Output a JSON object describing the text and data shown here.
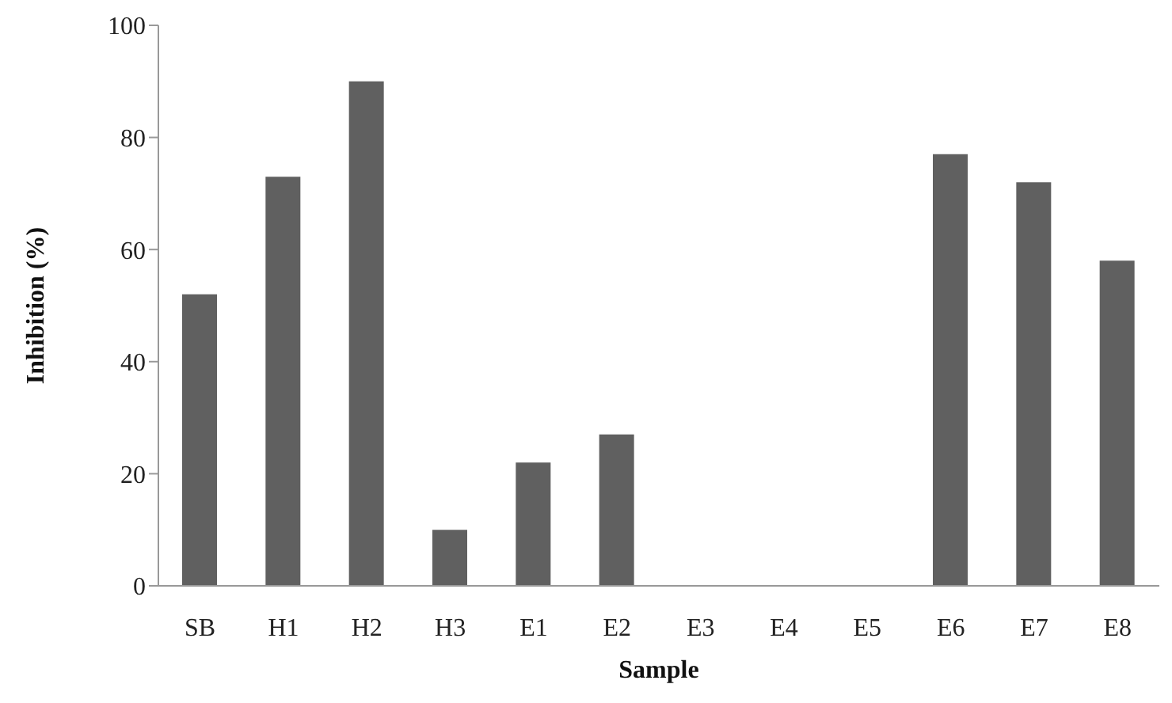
{
  "chart_data": {
    "type": "bar",
    "xlabel": "Sample",
    "ylabel": "Inhibition (%)",
    "categories": [
      "SB",
      "H1",
      "H2",
      "H3",
      "E1",
      "E2",
      "E3",
      "E4",
      "E5",
      "E6",
      "E7",
      "E8"
    ],
    "values": [
      52,
      73,
      90,
      10,
      22,
      27,
      0,
      0,
      0,
      77,
      72,
      58
    ],
    "color": "#606060",
    "ylim": [
      0,
      100
    ],
    "yticks": [
      0,
      20,
      40,
      60,
      80,
      100
    ],
    "grid": false,
    "legend": false
  }
}
